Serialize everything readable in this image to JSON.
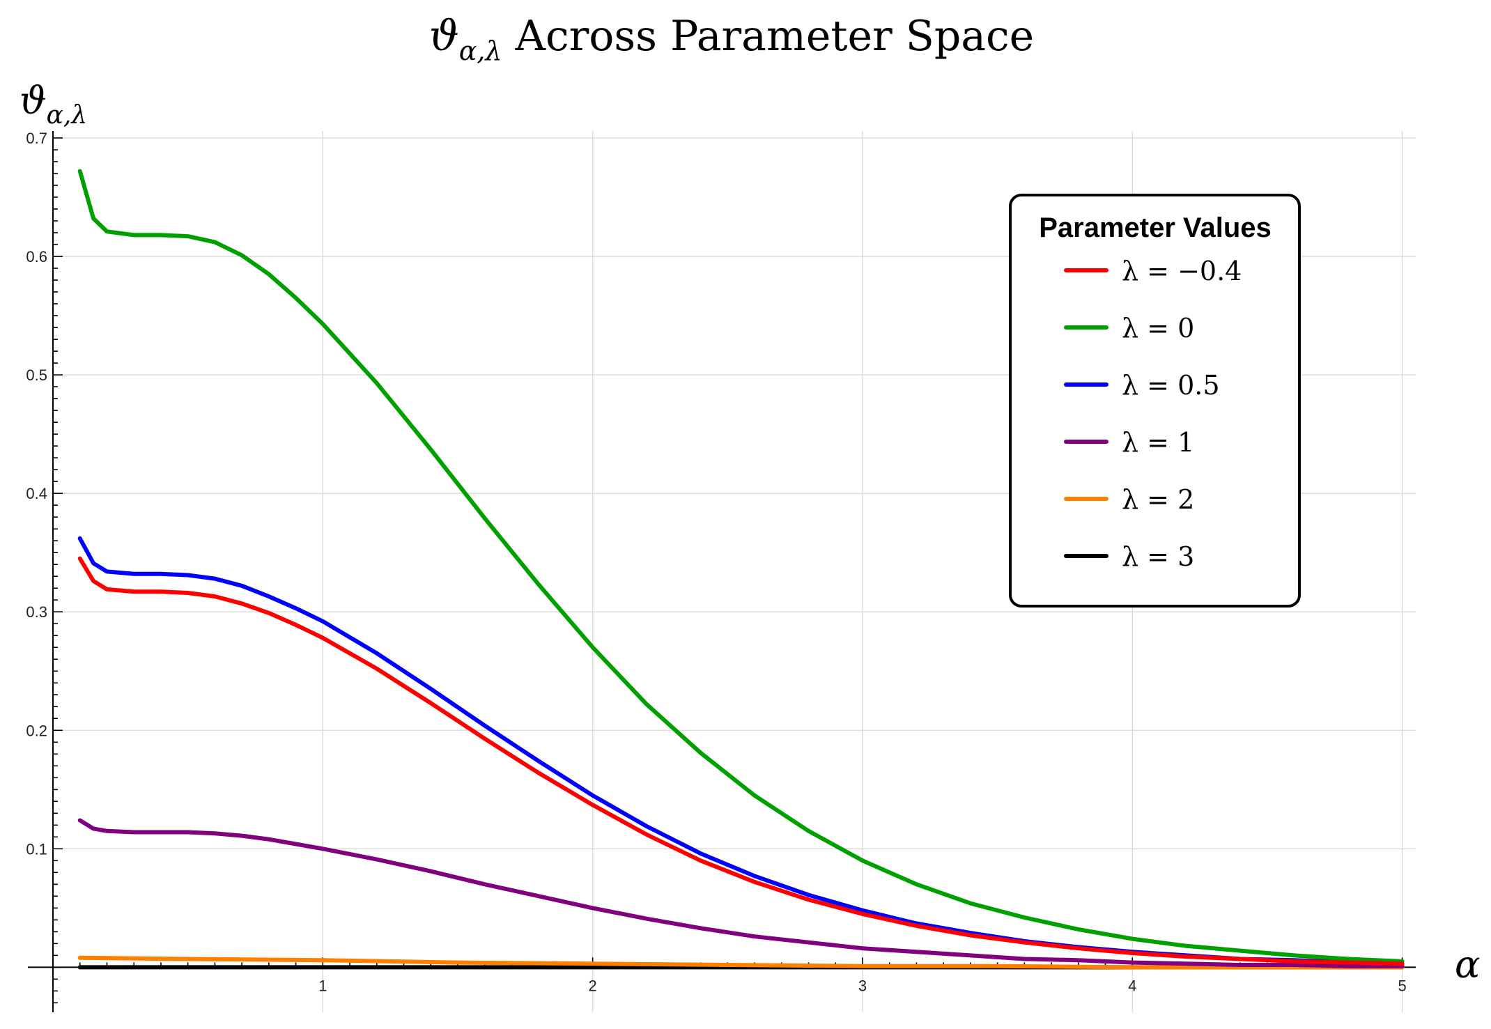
{
  "chart_data": {
    "type": "line",
    "title": "ϑα,λ Across Parameter Space",
    "xlabel": "α",
    "ylabel": "ϑα,λ",
    "xlim": [
      0,
      5.05
    ],
    "ylim": [
      -0.038,
      0.7
    ],
    "xticks": [
      1,
      2,
      3,
      4,
      5
    ],
    "yticks": [
      0.1,
      0.2,
      0.3,
      0.4,
      0.5,
      0.6,
      0.7
    ],
    "grid": true,
    "legend": {
      "title": "Parameter Values",
      "placement": "top-right"
    },
    "series": [
      {
        "name": "λ = −0.4",
        "color": "#ff0000",
        "x": [
          0.1,
          0.15,
          0.2,
          0.3,
          0.4,
          0.5,
          0.6,
          0.7,
          0.8,
          0.9,
          1.0,
          1.2,
          1.4,
          1.6,
          1.8,
          2.0,
          2.2,
          2.4,
          2.6,
          2.8,
          3.0,
          3.2,
          3.4,
          3.6,
          3.8,
          4.0,
          4.2,
          4.4,
          4.6,
          4.8,
          5.0
        ],
        "y": [
          0.345,
          0.326,
          0.319,
          0.317,
          0.317,
          0.316,
          0.313,
          0.307,
          0.299,
          0.289,
          0.278,
          0.252,
          0.223,
          0.193,
          0.164,
          0.137,
          0.112,
          0.09,
          0.072,
          0.057,
          0.045,
          0.035,
          0.027,
          0.021,
          0.016,
          0.012,
          0.009,
          0.007,
          0.005,
          0.004,
          0.003
        ]
      },
      {
        "name": "λ = 0",
        "color": "#00a000",
        "x": [
          0.1,
          0.15,
          0.2,
          0.3,
          0.4,
          0.5,
          0.6,
          0.7,
          0.8,
          0.9,
          1.0,
          1.2,
          1.4,
          1.6,
          1.8,
          2.0,
          2.2,
          2.4,
          2.6,
          2.8,
          3.0,
          3.2,
          3.4,
          3.6,
          3.8,
          4.0,
          4.2,
          4.4,
          4.6,
          4.8,
          5.0
        ],
        "y": [
          0.672,
          0.632,
          0.621,
          0.618,
          0.618,
          0.617,
          0.612,
          0.601,
          0.585,
          0.565,
          0.543,
          0.493,
          0.437,
          0.379,
          0.323,
          0.27,
          0.222,
          0.181,
          0.145,
          0.115,
          0.09,
          0.07,
          0.054,
          0.042,
          0.032,
          0.024,
          0.018,
          0.014,
          0.01,
          0.007,
          0.005
        ]
      },
      {
        "name": "λ = 0.5",
        "color": "#0000ff",
        "x": [
          0.1,
          0.15,
          0.2,
          0.3,
          0.4,
          0.5,
          0.6,
          0.7,
          0.8,
          0.9,
          1.0,
          1.2,
          1.4,
          1.6,
          1.8,
          2.0,
          2.2,
          2.4,
          2.6,
          2.8,
          3.0,
          3.2,
          3.4,
          3.6,
          3.8,
          4.0,
          4.2,
          4.4,
          4.6,
          4.8,
          5.0
        ],
        "y": [
          0.362,
          0.341,
          0.334,
          0.332,
          0.332,
          0.331,
          0.328,
          0.322,
          0.313,
          0.303,
          0.292,
          0.265,
          0.235,
          0.204,
          0.174,
          0.145,
          0.119,
          0.096,
          0.077,
          0.061,
          0.048,
          0.037,
          0.029,
          0.022,
          0.017,
          0.013,
          0.01,
          0.007,
          0.006,
          0.004,
          0.003
        ]
      },
      {
        "name": "λ = 1",
        "color": "#800080",
        "x": [
          0.1,
          0.15,
          0.2,
          0.3,
          0.4,
          0.5,
          0.6,
          0.7,
          0.8,
          0.9,
          1.0,
          1.2,
          1.4,
          1.6,
          1.8,
          2.0,
          2.2,
          2.4,
          2.6,
          2.8,
          3.0,
          3.2,
          3.4,
          3.6,
          3.8,
          4.0,
          4.2,
          4.4,
          4.6,
          4.8,
          5.0
        ],
        "y": [
          0.124,
          0.117,
          0.115,
          0.114,
          0.114,
          0.114,
          0.113,
          0.111,
          0.108,
          0.104,
          0.1,
          0.091,
          0.081,
          0.07,
          0.06,
          0.05,
          0.041,
          0.033,
          0.026,
          0.021,
          0.016,
          0.013,
          0.01,
          0.007,
          0.006,
          0.004,
          0.003,
          0.002,
          0.002,
          0.001,
          0.001
        ]
      },
      {
        "name": "λ = 2",
        "color": "#ff8000",
        "x": [
          0.1,
          0.5,
          1.0,
          1.5,
          2.0,
          2.5,
          3.0,
          3.5,
          4.0,
          4.5,
          5.0
        ],
        "y": [
          0.008,
          0.007,
          0.006,
          0.004,
          0.003,
          0.002,
          0.001,
          0.001,
          0.0,
          0.0,
          0.0
        ]
      },
      {
        "name": "λ = 3",
        "color": "#000000",
        "x": [
          0.1,
          1.0,
          2.0,
          3.0,
          4.0,
          5.0
        ],
        "y": [
          0.0,
          0.0,
          0.0,
          0.0,
          0.0,
          0.0
        ]
      }
    ]
  }
}
